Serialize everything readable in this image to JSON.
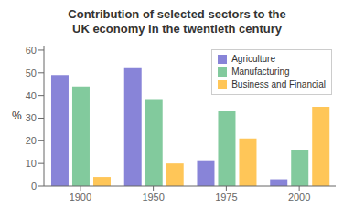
{
  "chart_data": {
    "type": "bar",
    "title": "Contribution of selected sectors to the\nUK economy in the twentieth century",
    "ylabel": "%",
    "categories": [
      "1900",
      "1950",
      "1975",
      "2000"
    ],
    "series": [
      {
        "name": "Agriculture",
        "color": "#8884d8",
        "values": [
          49,
          52,
          11,
          3
        ]
      },
      {
        "name": "Manufacturing",
        "color": "#82ca9d",
        "values": [
          44,
          38,
          33,
          16
        ]
      },
      {
        "name": "Business and Financial",
        "color": "#ffc658",
        "values": [
          4,
          10,
          21,
          35
        ]
      }
    ],
    "ylim": [
      0,
      62
    ],
    "yticks": [
      0,
      10,
      20,
      30,
      40,
      50,
      60
    ],
    "grid": false,
    "legend": "upper right"
  }
}
